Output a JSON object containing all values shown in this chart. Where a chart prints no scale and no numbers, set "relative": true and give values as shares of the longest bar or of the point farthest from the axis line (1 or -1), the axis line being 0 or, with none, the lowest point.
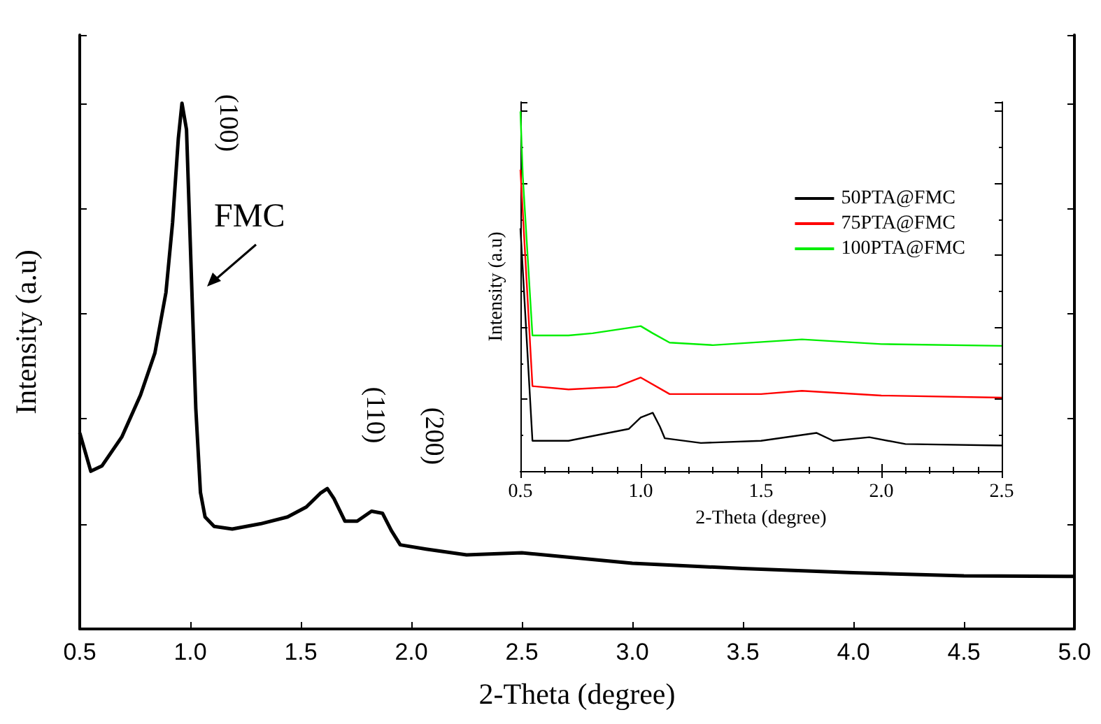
{
  "chart_data": [
    {
      "type": "line",
      "xlabel": "2-Theta (degree)",
      "ylabel": "Intensity (a.u)",
      "relative": true,
      "xlim": [
        0.5,
        5.0
      ],
      "xticks": [
        0.5,
        {
          "value": 1,
          "label": "1.0"
        },
        1.5,
        {
          "value": 2,
          "label": "2.0"
        },
        2.5,
        {
          "value": 3,
          "label": "3.0"
        },
        3.5,
        {
          "value": 4,
          "label": "4.0"
        },
        4.5,
        {
          "value": 5,
          "label": "5.0"
        }
      ],
      "annotations": [
        "(100)",
        "FMC",
        "(110)",
        "(200)"
      ],
      "series": [
        {
          "color": "#000000",
          "x": [
            0.5,
            0.55,
            0.6,
            0.69,
            0.775,
            0.84,
            0.89,
            0.92,
            0.946,
            0.9625,
            0.983,
            1.004,
            1.025,
            1.046,
            1.067,
            1.108,
            1.19,
            1.317,
            1.44,
            1.525,
            1.588,
            1.62,
            1.65,
            1.7,
            1.755,
            1.82,
            1.87,
            1.91,
            1.95,
            2.067,
            2.25,
            2.5,
            3.0,
            3.5,
            4.0,
            4.5,
            5.0
          ],
          "values": [
            0.373,
            0.3,
            0.31,
            0.365,
            0.445,
            0.525,
            0.64,
            0.773,
            0.933,
            1.0,
            0.95,
            0.685,
            0.42,
            0.26,
            0.213,
            0.195,
            0.19,
            0.2,
            0.213,
            0.232,
            0.258,
            0.267,
            0.248,
            0.205,
            0.205,
            0.224,
            0.22,
            0.187,
            0.16,
            0.152,
            0.141,
            0.145,
            0.125,
            0.115,
            0.107,
            0.101,
            0.1
          ]
        }
      ],
      "legend": false,
      "grid": false
    },
    {
      "type": "line",
      "xlabel": "2-Theta (degree)",
      "ylabel": "Intensity (a.u)",
      "relative": true,
      "xlim": [
        0.5,
        2.5
      ],
      "xticks": [
        0.5,
        {
          "value": 1,
          "label": "1.0"
        },
        1.5,
        {
          "value": 2,
          "label": "2.0"
        },
        2.5
      ],
      "legend": "top right",
      "grid": false,
      "series": [
        {
          "name": "50PTA@FMC",
          "color": "#000000",
          "x": [
            0.5,
            0.55,
            0.7,
            0.85,
            0.95,
            1.0,
            1.05,
            1.08,
            1.1,
            1.25,
            1.5,
            1.73,
            1.8,
            1.95,
            2.1,
            2.5
          ],
          "values": [
            0.675,
            0.084,
            0.084,
            0.104,
            0.117,
            0.149,
            0.162,
            0.123,
            0.091,
            0.078,
            0.084,
            0.106,
            0.084,
            0.094,
            0.075,
            0.071
          ]
        },
        {
          "name": "75PTA@FMC",
          "color": "#ff0000",
          "x": [
            0.5,
            0.55,
            0.7,
            0.9,
            1.0,
            1.12,
            1.5,
            1.67,
            2.0,
            2.5
          ],
          "values": [
            0.838,
            0.236,
            0.227,
            0.234,
            0.26,
            0.214,
            0.214,
            0.223,
            0.21,
            0.204
          ]
        },
        {
          "name": "100PTA@FMC",
          "color": "#00ee00",
          "x": [
            0.5,
            0.51,
            0.55,
            0.6,
            0.7,
            0.8,
            1.0,
            1.05,
            1.12,
            1.3,
            1.67,
            2.0,
            2.5
          ],
          "values": [
            1.0,
            0.818,
            0.377,
            0.377,
            0.377,
            0.383,
            0.403,
            0.383,
            0.357,
            0.35,
            0.366,
            0.353,
            0.348
          ]
        }
      ]
    }
  ]
}
